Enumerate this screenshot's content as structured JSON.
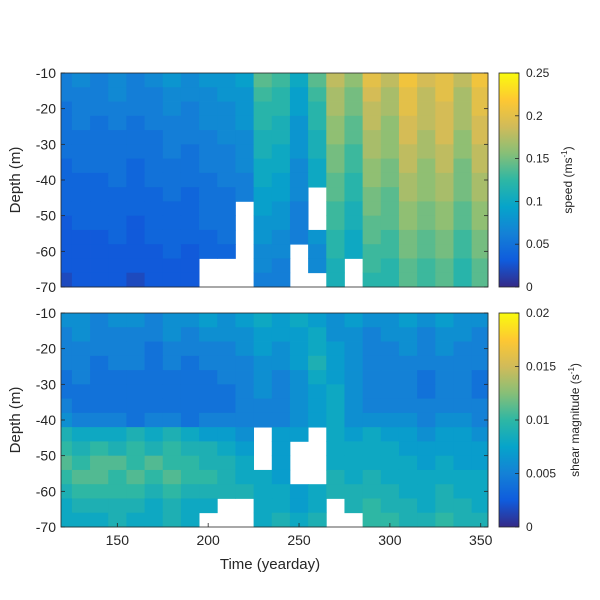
{
  "chart_data": [
    {
      "type": "heatmap",
      "title": "",
      "xlabel": "",
      "ylabel": "Depth (m)",
      "xlim": [
        119,
        354
      ],
      "ylim": [
        -70,
        -10
      ],
      "yticks": [
        -10,
        -20,
        -30,
        -40,
        -50,
        -60,
        -70
      ],
      "colorbar": {
        "label": "speed (ms",
        "label_superscript": "-1",
        "label_suffix": ")",
        "range": [
          0,
          0.25
        ],
        "ticks": [
          "0.25",
          "0.2",
          "0.15",
          "0.1",
          "0.05",
          "0"
        ]
      },
      "depth_bins_m": [
        -12,
        -16,
        -20,
        -24,
        -28,
        -32,
        -36,
        -40,
        -44,
        -48,
        -52,
        -56,
        -60,
        -64,
        -68
      ],
      "time_yearday": [
        120,
        130,
        140,
        150,
        160,
        170,
        180,
        190,
        200,
        210,
        220,
        230,
        240,
        250,
        260,
        270,
        280,
        290,
        300,
        310,
        320,
        330,
        340,
        350
      ],
      "values_by_depth": [
        [
          0.06,
          0.07,
          0.06,
          0.07,
          0.06,
          0.07,
          0.08,
          0.07,
          0.08,
          0.08,
          0.09,
          0.14,
          0.13,
          0.1,
          0.14,
          0.18,
          0.16,
          0.2,
          0.18,
          0.21,
          0.19,
          0.2,
          0.18,
          0.21
        ],
        [
          0.06,
          0.06,
          0.06,
          0.07,
          0.06,
          0.06,
          0.07,
          0.07,
          0.07,
          0.08,
          0.08,
          0.13,
          0.12,
          0.09,
          0.13,
          0.17,
          0.15,
          0.19,
          0.17,
          0.2,
          0.18,
          0.2,
          0.17,
          0.2
        ],
        [
          0.05,
          0.06,
          0.06,
          0.06,
          0.06,
          0.06,
          0.07,
          0.06,
          0.07,
          0.07,
          0.08,
          0.12,
          0.12,
          0.09,
          0.12,
          0.17,
          0.15,
          0.18,
          0.17,
          0.2,
          0.18,
          0.19,
          0.17,
          0.2
        ],
        [
          0.05,
          0.06,
          0.05,
          0.06,
          0.05,
          0.06,
          0.06,
          0.06,
          0.07,
          0.07,
          0.08,
          0.12,
          0.11,
          0.08,
          0.12,
          0.16,
          0.14,
          0.18,
          0.16,
          0.19,
          0.18,
          0.19,
          0.17,
          0.19
        ],
        [
          0.05,
          0.05,
          0.05,
          0.05,
          0.05,
          0.05,
          0.06,
          0.06,
          0.06,
          0.07,
          0.07,
          0.11,
          0.11,
          0.08,
          0.11,
          0.16,
          0.14,
          0.17,
          0.16,
          0.19,
          0.17,
          0.19,
          0.16,
          0.19
        ],
        [
          0.05,
          0.05,
          0.05,
          0.05,
          0.05,
          0.05,
          0.06,
          0.05,
          0.06,
          0.06,
          0.07,
          0.11,
          0.1,
          0.08,
          0.11,
          0.15,
          0.13,
          0.17,
          0.16,
          0.18,
          0.17,
          0.18,
          0.16,
          0.18
        ],
        [
          0.04,
          0.05,
          0.05,
          0.05,
          0.04,
          0.05,
          0.05,
          0.05,
          0.06,
          0.06,
          0.07,
          0.1,
          0.1,
          0.07,
          0.1,
          0.15,
          0.13,
          0.16,
          0.15,
          0.18,
          0.16,
          0.18,
          0.15,
          0.18
        ],
        [
          0.04,
          0.04,
          0.04,
          0.05,
          0.04,
          0.05,
          0.05,
          0.05,
          0.05,
          0.06,
          0.06,
          0.1,
          0.09,
          0.07,
          0.1,
          0.14,
          0.12,
          0.16,
          0.15,
          0.17,
          0.16,
          0.17,
          0.15,
          0.17
        ],
        [
          0.04,
          0.04,
          0.04,
          0.04,
          0.04,
          0.04,
          0.05,
          0.04,
          0.05,
          0.05,
          0.06,
          0.09,
          0.09,
          0.07,
          null,
          0.14,
          0.12,
          0.15,
          0.14,
          0.17,
          0.16,
          0.17,
          0.15,
          0.17
        ],
        [
          0.04,
          0.04,
          0.04,
          0.04,
          0.04,
          0.04,
          0.04,
          0.04,
          0.05,
          0.05,
          null,
          0.09,
          0.08,
          0.06,
          null,
          0.13,
          0.11,
          0.15,
          0.14,
          0.16,
          0.15,
          0.16,
          0.14,
          0.16
        ],
        [
          0.03,
          0.04,
          0.04,
          0.04,
          0.03,
          0.04,
          0.04,
          0.04,
          0.05,
          0.05,
          null,
          0.08,
          0.08,
          0.06,
          null,
          0.13,
          0.11,
          0.14,
          0.14,
          0.16,
          0.15,
          0.16,
          0.14,
          0.16
        ],
        [
          0.03,
          0.03,
          0.03,
          0.04,
          0.03,
          0.04,
          0.04,
          0.04,
          0.04,
          0.05,
          null,
          0.08,
          0.07,
          0.06,
          0.08,
          0.12,
          0.1,
          0.14,
          0.13,
          0.15,
          0.14,
          0.15,
          0.13,
          0.15
        ],
        [
          0.03,
          0.03,
          0.03,
          0.03,
          0.03,
          0.03,
          0.04,
          0.03,
          0.04,
          0.04,
          null,
          0.07,
          0.07,
          null,
          0.07,
          0.12,
          0.1,
          0.13,
          0.13,
          0.15,
          0.14,
          0.15,
          0.13,
          0.15
        ],
        [
          0.03,
          0.03,
          0.03,
          0.03,
          0.03,
          0.03,
          0.03,
          0.03,
          null,
          null,
          null,
          0.07,
          0.06,
          null,
          0.07,
          0.11,
          null,
          0.13,
          0.12,
          0.14,
          0.13,
          0.14,
          0.12,
          0.14
        ],
        [
          0.02,
          0.03,
          0.03,
          0.03,
          0.02,
          0.03,
          0.03,
          0.03,
          null,
          null,
          null,
          0.06,
          0.06,
          null,
          null,
          0.11,
          null,
          0.12,
          0.12,
          0.14,
          0.13,
          0.14,
          0.12,
          0.14
        ]
      ]
    },
    {
      "type": "heatmap",
      "title": "",
      "xlabel": "Time (yearday)",
      "ylabel": "Depth (m)",
      "xlim": [
        119,
        354
      ],
      "ylim": [
        -70,
        -10
      ],
      "xticks": [
        "150",
        "200",
        "250",
        "300",
        "350"
      ],
      "xtick_values": [
        150,
        200,
        250,
        300,
        350
      ],
      "yticks": [
        -10,
        -20,
        -30,
        -40,
        -50,
        -60,
        -70
      ],
      "colorbar": {
        "label": "shear magnitude (s",
        "label_superscript": "-1",
        "label_suffix": ")",
        "range": [
          0,
          0.02
        ],
        "ticks": [
          "0.02",
          "0.015",
          "0.01",
          "0.005",
          "0"
        ]
      },
      "depth_bins_m": [
        -12,
        -16,
        -20,
        -24,
        -28,
        -32,
        -36,
        -40,
        -44,
        -48,
        -52,
        -56,
        -60,
        -64,
        -68
      ],
      "time_yearday": [
        120,
        130,
        140,
        150,
        160,
        170,
        180,
        190,
        200,
        210,
        220,
        230,
        240,
        250,
        260,
        270,
        280,
        290,
        300,
        310,
        320,
        330,
        340,
        350
      ],
      "values_by_depth": [
        [
          0.006,
          0.006,
          0.005,
          0.006,
          0.006,
          0.005,
          0.006,
          0.006,
          0.007,
          0.006,
          0.007,
          0.008,
          0.007,
          0.008,
          0.007,
          0.006,
          0.007,
          0.006,
          0.006,
          0.007,
          0.006,
          0.007,
          0.006,
          0.006
        ],
        [
          0.005,
          0.006,
          0.005,
          0.005,
          0.005,
          0.005,
          0.006,
          0.005,
          0.006,
          0.006,
          0.006,
          0.007,
          0.007,
          0.007,
          0.008,
          0.006,
          0.006,
          0.005,
          0.006,
          0.006,
          0.005,
          0.006,
          0.006,
          0.005
        ],
        [
          0.005,
          0.005,
          0.005,
          0.005,
          0.005,
          0.004,
          0.005,
          0.005,
          0.005,
          0.005,
          0.006,
          0.007,
          0.006,
          0.007,
          0.008,
          0.007,
          0.006,
          0.005,
          0.005,
          0.006,
          0.005,
          0.006,
          0.005,
          0.005
        ],
        [
          0.005,
          0.005,
          0.004,
          0.005,
          0.005,
          0.004,
          0.005,
          0.004,
          0.005,
          0.005,
          0.005,
          0.006,
          0.006,
          0.007,
          0.009,
          0.007,
          0.006,
          0.005,
          0.005,
          0.005,
          0.005,
          0.005,
          0.005,
          0.005
        ],
        [
          0.004,
          0.005,
          0.004,
          0.004,
          0.004,
          0.004,
          0.004,
          0.004,
          0.004,
          0.005,
          0.005,
          0.006,
          0.005,
          0.006,
          0.008,
          0.007,
          0.006,
          0.005,
          0.005,
          0.005,
          0.004,
          0.005,
          0.005,
          0.004
        ],
        [
          0.004,
          0.004,
          0.004,
          0.004,
          0.004,
          0.004,
          0.004,
          0.004,
          0.004,
          0.004,
          0.005,
          0.006,
          0.005,
          0.006,
          0.007,
          0.008,
          0.006,
          0.005,
          0.005,
          0.005,
          0.004,
          0.005,
          0.005,
          0.004
        ],
        [
          0.005,
          0.004,
          0.004,
          0.004,
          0.004,
          0.004,
          0.004,
          0.004,
          0.004,
          0.004,
          0.005,
          0.005,
          0.005,
          0.006,
          0.007,
          0.008,
          0.006,
          0.005,
          0.005,
          0.005,
          0.005,
          0.005,
          0.005,
          0.005
        ],
        [
          0.006,
          0.005,
          0.005,
          0.005,
          0.004,
          0.005,
          0.005,
          0.004,
          0.005,
          0.005,
          0.005,
          0.005,
          0.005,
          0.006,
          0.007,
          0.008,
          0.006,
          0.006,
          0.006,
          0.006,
          0.005,
          0.006,
          0.006,
          0.005
        ],
        [
          0.009,
          0.008,
          0.008,
          0.008,
          0.009,
          0.008,
          0.009,
          0.008,
          0.007,
          0.007,
          0.006,
          null,
          0.007,
          0.007,
          null,
          0.008,
          0.007,
          0.008,
          0.007,
          0.007,
          0.006,
          0.007,
          0.007,
          0.006
        ],
        [
          0.01,
          0.009,
          0.01,
          0.009,
          0.01,
          0.009,
          0.01,
          0.009,
          0.009,
          0.008,
          0.007,
          null,
          0.007,
          null,
          null,
          0.008,
          0.008,
          0.008,
          0.008,
          0.007,
          0.007,
          0.007,
          0.007,
          0.007
        ],
        [
          0.011,
          0.01,
          0.011,
          0.011,
          0.01,
          0.011,
          0.01,
          0.01,
          0.009,
          0.009,
          0.008,
          null,
          0.007,
          null,
          null,
          0.008,
          0.008,
          0.008,
          0.008,
          0.008,
          0.007,
          0.008,
          0.007,
          0.007
        ],
        [
          0.01,
          0.011,
          0.011,
          0.01,
          0.011,
          0.01,
          0.011,
          0.01,
          0.01,
          0.009,
          0.008,
          0.008,
          0.007,
          null,
          null,
          0.009,
          0.008,
          0.009,
          0.008,
          0.008,
          0.008,
          0.008,
          0.008,
          0.008
        ],
        [
          0.009,
          0.01,
          0.01,
          0.01,
          0.01,
          0.009,
          0.01,
          0.009,
          0.009,
          0.009,
          0.009,
          0.008,
          0.008,
          0.007,
          0.008,
          0.009,
          0.009,
          0.009,
          0.009,
          0.008,
          0.008,
          0.009,
          0.008,
          0.008
        ],
        [
          0.008,
          0.009,
          0.009,
          0.009,
          0.009,
          0.008,
          0.009,
          0.008,
          0.008,
          null,
          null,
          0.008,
          0.008,
          0.007,
          0.008,
          null,
          0.009,
          0.01,
          0.009,
          0.009,
          0.008,
          0.009,
          0.009,
          0.008
        ],
        [
          0.008,
          0.008,
          0.008,
          0.009,
          0.008,
          0.008,
          0.009,
          0.008,
          null,
          null,
          null,
          0.008,
          0.009,
          0.008,
          0.009,
          null,
          null,
          0.01,
          0.01,
          0.009,
          0.009,
          0.01,
          0.009,
          0.009
        ]
      ]
    }
  ]
}
